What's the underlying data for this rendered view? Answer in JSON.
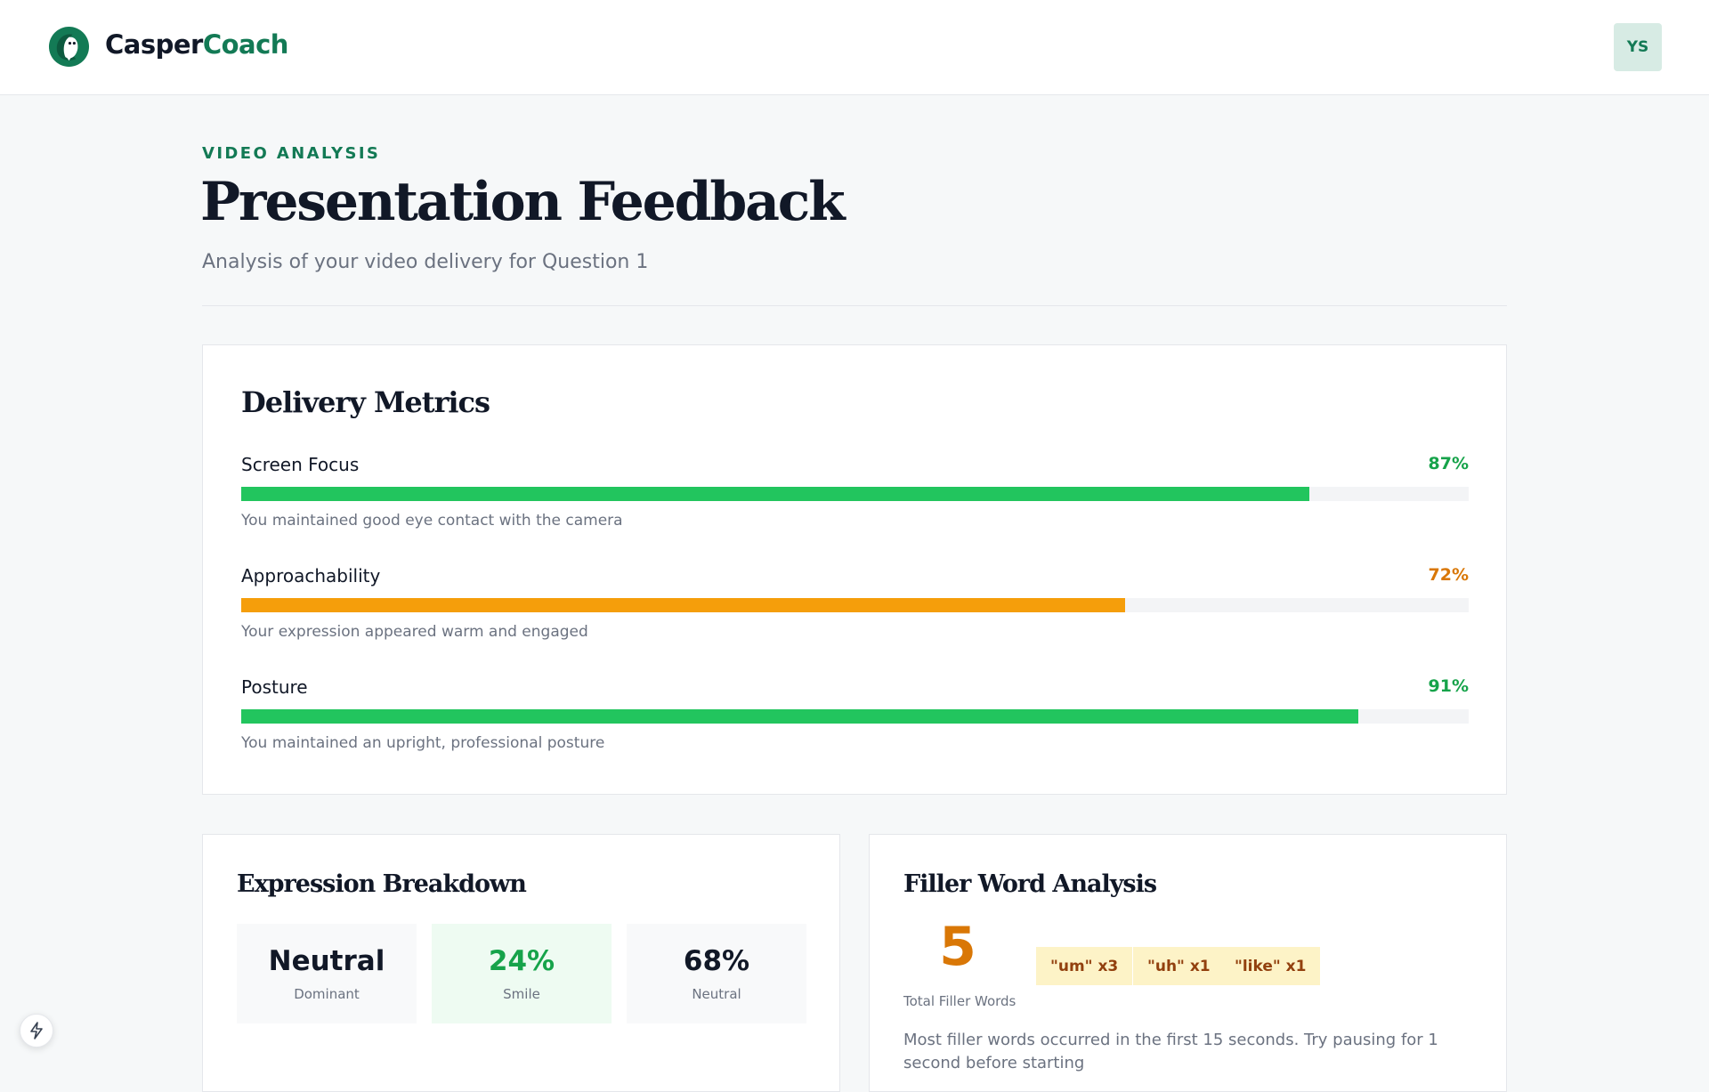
{
  "header": {
    "brand_part1": "Casper",
    "brand_part2": "Coach",
    "avatar_initials": "YS",
    "logo_icon": "ghost-logo-icon"
  },
  "page": {
    "eyebrow": "VIDEO ANALYSIS",
    "title": "Presentation Feedback",
    "subtitle": "Analysis of your video delivery for Question 1"
  },
  "delivery_metrics": {
    "title": "Delivery Metrics",
    "items": [
      {
        "name": "Screen Focus",
        "value_label": "87%",
        "value": 87,
        "color": "#22c55e",
        "text_color": "#16a34a",
        "description": "You maintained good eye contact with the camera"
      },
      {
        "name": "Approachability",
        "value_label": "72%",
        "value": 72,
        "color": "#f59e0b",
        "text_color": "#d97706",
        "description": "Your expression appeared warm and engaged"
      },
      {
        "name": "Posture",
        "value_label": "91%",
        "value": 91,
        "color": "#22c55e",
        "text_color": "#16a34a",
        "description": "You maintained an upright, professional posture"
      }
    ]
  },
  "expression": {
    "title": "Expression Breakdown",
    "tiles": [
      {
        "value": "Neutral",
        "label": "Dominant"
      },
      {
        "value": "24%",
        "label": "Smile"
      },
      {
        "value": "68%",
        "label": "Neutral"
      }
    ]
  },
  "filler": {
    "title": "Filler Word Analysis",
    "count": "5",
    "caption": "Total Filler Words",
    "chips": [
      "\"um\" x3",
      "\"uh\" x1",
      "\"like\" x1"
    ],
    "note": "Most filler words occurred in the first 15 seconds. Try pausing for 1 second before starting"
  },
  "floating": {
    "icon": "lightning-icon"
  },
  "colors": {
    "brand": "#137a55",
    "good": "#22c55e",
    "warn": "#f59e0b"
  }
}
